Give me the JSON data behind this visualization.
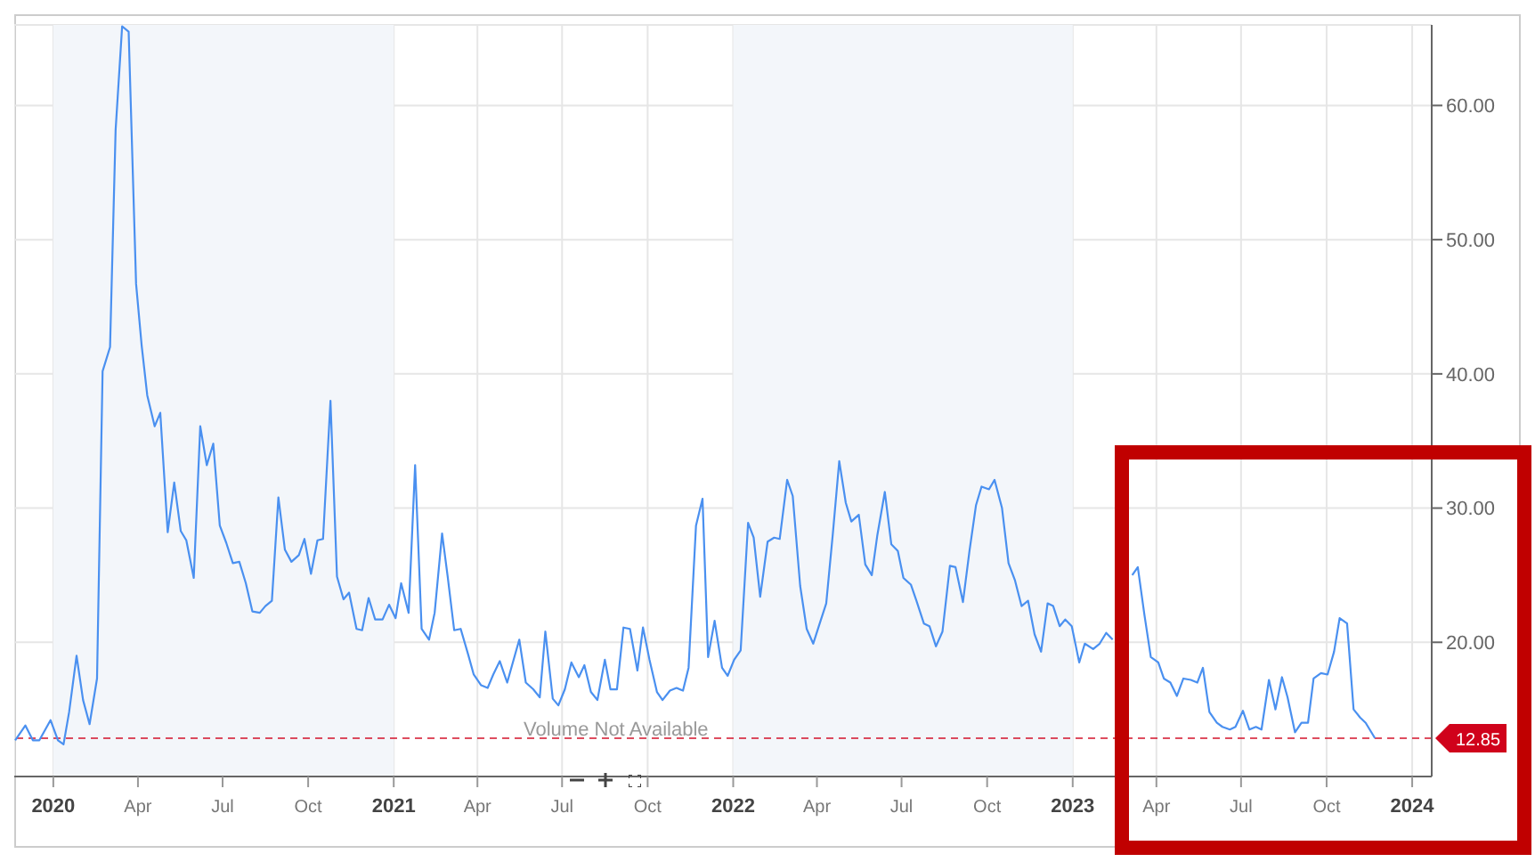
{
  "chart_data": {
    "type": "line",
    "x": [
      "2019-11-21",
      "2019-12-02",
      "2019-12-10",
      "2019-12-17",
      "2019-12-29",
      "2020-01-06",
      "2020-01-12",
      "2020-01-18",
      "2020-01-26",
      "2020-02-02",
      "2020-02-09",
      "2020-02-17",
      "2020-02-23",
      "2020-03-02",
      "2020-03-08",
      "2020-03-15",
      "2020-03-22",
      "2020-03-30",
      "2020-04-05",
      "2020-04-11",
      "2020-04-19",
      "2020-04-25",
      "2020-05-03",
      "2020-05-10",
      "2020-05-17",
      "2020-05-23",
      "2020-05-31",
      "2020-06-07",
      "2020-06-14",
      "2020-06-21",
      "2020-06-28",
      "2020-07-05",
      "2020-07-12",
      "2020-07-19",
      "2020-07-26",
      "2020-08-02",
      "2020-08-10",
      "2020-08-16",
      "2020-08-23",
      "2020-08-30",
      "2020-09-06",
      "2020-09-13",
      "2020-09-21",
      "2020-09-27",
      "2020-10-04",
      "2020-10-11",
      "2020-10-17",
      "2020-10-25",
      "2020-11-01",
      "2020-11-08",
      "2020-11-14",
      "2020-11-22",
      "2020-11-28",
      "2020-12-05",
      "2020-12-12",
      "2020-12-20",
      "2020-12-27",
      "2021-01-03",
      "2021-01-09",
      "2021-01-17",
      "2021-01-24",
      "2021-01-31",
      "2021-02-08",
      "2021-02-14",
      "2021-02-22",
      "2021-02-28",
      "2021-03-07",
      "2021-03-14",
      "2021-03-22",
      "2021-03-28",
      "2021-04-05",
      "2021-04-12",
      "2021-04-18",
      "2021-04-25",
      "2021-05-03",
      "2021-05-16",
      "2021-05-23",
      "2021-05-31",
      "2021-06-07",
      "2021-06-13",
      "2021-06-21",
      "2021-06-27",
      "2021-07-04",
      "2021-07-11",
      "2021-07-19",
      "2021-07-25",
      "2021-08-01",
      "2021-08-08",
      "2021-08-16",
      "2021-08-22",
      "2021-08-29",
      "2021-09-05",
      "2021-09-12",
      "2021-09-20",
      "2021-09-26",
      "2021-10-03",
      "2021-10-11",
      "2021-10-17",
      "2021-10-25",
      "2021-11-01",
      "2021-11-08",
      "2021-11-14",
      "2021-11-22",
      "2021-11-29",
      "2021-12-05",
      "2021-12-12",
      "2021-12-20",
      "2021-12-26",
      "2022-01-02",
      "2022-01-09",
      "2022-01-17",
      "2022-01-23",
      "2022-01-30",
      "2022-02-07",
      "2022-02-14",
      "2022-02-20",
      "2022-02-28",
      "2022-03-06",
      "2022-03-14",
      "2022-03-21",
      "2022-03-28",
      "2022-04-04",
      "2022-04-11",
      "2022-04-18",
      "2022-04-25",
      "2022-05-02",
      "2022-05-08",
      "2022-05-16",
      "2022-05-23",
      "2022-05-30",
      "2022-06-05",
      "2022-06-13",
      "2022-06-20",
      "2022-06-27",
      "2022-07-03",
      "2022-07-11",
      "2022-07-17",
      "2022-07-25",
      "2022-07-31",
      "2022-08-07",
      "2022-08-14",
      "2022-08-22",
      "2022-08-28",
      "2022-09-05",
      "2022-09-12",
      "2022-09-19",
      "2022-09-25",
      "2022-10-03",
      "2022-10-09",
      "2022-10-17",
      "2022-10-24",
      "2022-10-31",
      "2022-11-07",
      "2022-11-14",
      "2022-11-21",
      "2022-11-28",
      "2022-12-05",
      "2022-12-11",
      "2022-12-18",
      "2022-12-24",
      "2022-12-31",
      "2023-01-08",
      "2023-01-14",
      "2023-01-23",
      "2023-01-30",
      "2023-02-06",
      "2023-02-13",
      "2023-02-19",
      "2023-02-26",
      "2023-03-06",
      "2023-03-12",
      "2023-03-19",
      "2023-03-26",
      "2023-04-03",
      "2023-04-09",
      "2023-04-16",
      "2023-04-23",
      "2023-04-30",
      "2023-05-08",
      "2023-05-15",
      "2023-05-21",
      "2023-05-28",
      "2023-06-05",
      "2023-06-11",
      "2023-06-19",
      "2023-06-25",
      "2023-07-03",
      "2023-07-10",
      "2023-07-17",
      "2023-07-23",
      "2023-07-31",
      "2023-08-07",
      "2023-08-14",
      "2023-08-20",
      "2023-08-28",
      "2023-09-04",
      "2023-09-11",
      "2023-09-17",
      "2023-09-25",
      "2023-10-02",
      "2023-10-09",
      "2023-10-15",
      "2023-10-23",
      "2023-10-30",
      "2023-11-06",
      "2023-11-12",
      "2023-11-22"
    ],
    "series": [
      {
        "color": "#4a90f0",
        "values": [
          12.7,
          13.8,
          12.7,
          12.7,
          14.2,
          12.7,
          12.4,
          14.8,
          19.0,
          15.7,
          13.9,
          17.3,
          40.2,
          42.0,
          58.2,
          65.9,
          65.5,
          46.7,
          42.1,
          38.4,
          36.1,
          37.1,
          28.2,
          31.9,
          28.3,
          27.6,
          24.8,
          36.1,
          33.2,
          34.8,
          28.7,
          27.4,
          25.9,
          26.0,
          24.4,
          22.3,
          22.2,
          22.7,
          23.1,
          30.8,
          26.9,
          26.0,
          26.5,
          27.7,
          25.1,
          27.6,
          27.7,
          38.0,
          24.9,
          23.2,
          23.7,
          21.0,
          20.9,
          23.3,
          21.7,
          21.7,
          22.8,
          21.8,
          24.4,
          22.2,
          33.2,
          21.0,
          20.2,
          22.2,
          28.1,
          24.9,
          20.9,
          21.0,
          19.1,
          17.6,
          16.8,
          16.6,
          17.6,
          18.6,
          17.0,
          20.2,
          17.0,
          16.5,
          15.9,
          20.8,
          15.8,
          15.3,
          16.5,
          18.5,
          17.4,
          18.3,
          16.3,
          15.7,
          18.7,
          16.5,
          16.5,
          21.1,
          21.0,
          17.9,
          21.1,
          18.7,
          16.3,
          15.7,
          16.4,
          16.6,
          16.4,
          18.1,
          28.7,
          30.7,
          18.9,
          21.6,
          18.1,
          17.5,
          18.7,
          19.4,
          28.9,
          27.8,
          23.4,
          27.5,
          27.8,
          27.7,
          32.1,
          30.9,
          24.2,
          21.0,
          19.9,
          21.4,
          22.9,
          28.0,
          33.5,
          30.4,
          29.0,
          29.5,
          25.8,
          25.0,
          28.0,
          31.2,
          27.3,
          26.8,
          24.8,
          24.3,
          23.1,
          21.4,
          21.2,
          19.7,
          20.8,
          25.7,
          25.6,
          23.0,
          26.8,
          30.2,
          31.6,
          31.4,
          32.1,
          30.0,
          25.9,
          24.6,
          22.7,
          23.1,
          20.6,
          19.3,
          22.9,
          22.7,
          21.2,
          21.7,
          21.2,
          18.5,
          19.9,
          19.5,
          19.9,
          20.7,
          20.2,
          null,
          null,
          25.0,
          25.6,
          22.1,
          18.9,
          18.5,
          17.3,
          17.0,
          16.0,
          17.3,
          17.2,
          17.0,
          18.1,
          14.8,
          14.0,
          13.7,
          13.5,
          13.7,
          14.9,
          13.5,
          13.7,
          13.5,
          17.2,
          15.0,
          17.4,
          15.9,
          13.3,
          14.0,
          14.0,
          17.3,
          17.7,
          17.6,
          19.3,
          21.8,
          21.4,
          15.0,
          14.4,
          14.0,
          12.85
        ]
      }
    ],
    "xlim": [
      "2019-11-20",
      "2024-01-22"
    ],
    "xticks": [
      {
        "value": "2020-01-01",
        "label": "2020"
      },
      {
        "value": "2020-04-01",
        "label": "Apr"
      },
      {
        "value": "2020-07-01",
        "label": "Jul"
      },
      {
        "value": "2020-10-01",
        "label": "Oct"
      },
      {
        "value": "2021-01-01",
        "label": "2021"
      },
      {
        "value": "2021-04-01",
        "label": "Apr"
      },
      {
        "value": "2021-07-01",
        "label": "Jul"
      },
      {
        "value": "2021-10-01",
        "label": "Oct"
      },
      {
        "value": "2022-01-01",
        "label": "2022"
      },
      {
        "value": "2022-04-01",
        "label": "Apr"
      },
      {
        "value": "2022-07-01",
        "label": "Jul"
      },
      {
        "value": "2022-10-01",
        "label": "Oct"
      },
      {
        "value": "2023-01-01",
        "label": "2023"
      },
      {
        "value": "2023-04-01",
        "label": "Apr"
      },
      {
        "value": "2023-07-01",
        "label": "Jul"
      },
      {
        "value": "2023-10-01",
        "label": "Oct"
      },
      {
        "value": "2024-01-01",
        "label": "2024"
      }
    ],
    "ylim": [
      10,
      66
    ],
    "yticks": [
      {
        "value": 20,
        "label": "20.00"
      },
      {
        "value": 30,
        "label": "30.00"
      },
      {
        "value": 40,
        "label": "40.00"
      },
      {
        "value": 50,
        "label": "50.00"
      },
      {
        "value": 60,
        "label": "60.00"
      }
    ],
    "grid": true,
    "marker": "none",
    "line_style": "solid",
    "ref_lines": [
      {
        "axis": "y",
        "value": 12.85,
        "label": "12.85",
        "color": "#d0021b",
        "line_style": "dashed"
      }
    ],
    "bands": [
      {
        "axis": "x",
        "from": "2020-01-01",
        "to": "2021-01-01",
        "color": "#f3f6fa"
      },
      {
        "axis": "x",
        "from": "2022-01-01",
        "to": "2023-01-01",
        "color": "#f3f6fa"
      }
    ],
    "annotations": [
      "Volume Not Available"
    ]
  }
}
